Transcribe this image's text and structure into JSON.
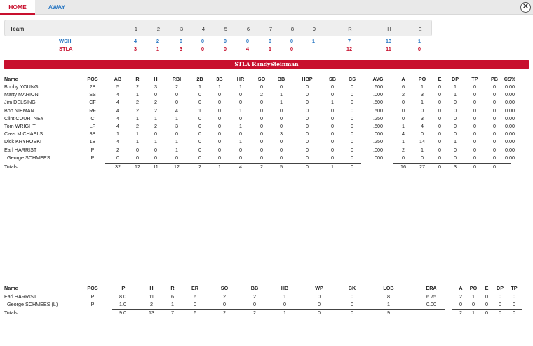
{
  "tabs": {
    "home": "HOME",
    "away": "AWAY"
  },
  "close_label": "✕",
  "linescore": {
    "header": "Team",
    "innings": [
      "1",
      "2",
      "3",
      "4",
      "5",
      "6",
      "7",
      "8",
      "9"
    ],
    "totals_headers": [
      "R",
      "H",
      "E"
    ],
    "teams": [
      {
        "name": "WSH",
        "innings": [
          "4",
          "2",
          "0",
          "0",
          "0",
          "0",
          "0",
          "0",
          "1"
        ],
        "totals": [
          "7",
          "13",
          "1"
        ]
      },
      {
        "name": "STLA",
        "innings": [
          "3",
          "1",
          "3",
          "0",
          "0",
          "4",
          "1",
          "0",
          ""
        ],
        "totals": [
          "12",
          "11",
          "0"
        ]
      }
    ]
  },
  "banner": "STLA RandySteinman",
  "batting": {
    "headers": [
      "Name",
      "POS",
      "AB",
      "R",
      "H",
      "RBI",
      "2B",
      "3B",
      "HR",
      "SO",
      "BB",
      "HBP",
      "SB",
      "CS",
      "AVG",
      "A",
      "PO",
      "E",
      "DP",
      "TP",
      "PB",
      "CS%"
    ],
    "rows": [
      [
        "Bobby YOUNG",
        "2B",
        "5",
        "2",
        "3",
        "2",
        "1",
        "1",
        "1",
        "0",
        "0",
        "0",
        "0",
        "0",
        ".600",
        "6",
        "1",
        "0",
        "1",
        "0",
        "0",
        "0.00"
      ],
      [
        "Marty MARION",
        "SS",
        "4",
        "1",
        "0",
        "0",
        "0",
        "0",
        "0",
        "2",
        "1",
        "0",
        "0",
        "0",
        ".000",
        "2",
        "3",
        "0",
        "1",
        "0",
        "0",
        "0.00"
      ],
      [
        "Jim DELSING",
        "CF",
        "4",
        "2",
        "2",
        "0",
        "0",
        "0",
        "0",
        "0",
        "1",
        "0",
        "1",
        "0",
        ".500",
        "0",
        "1",
        "0",
        "0",
        "0",
        "0",
        "0.00"
      ],
      [
        "Bob NIEMAN",
        "RF",
        "4",
        "2",
        "2",
        "4",
        "1",
        "0",
        "1",
        "0",
        "0",
        "0",
        "0",
        "0",
        ".500",
        "0",
        "0",
        "0",
        "0",
        "0",
        "0",
        "0.00"
      ],
      [
        "Clint COURTNEY",
        "C",
        "4",
        "1",
        "1",
        "1",
        "0",
        "0",
        "0",
        "0",
        "0",
        "0",
        "0",
        "0",
        ".250",
        "0",
        "3",
        "0",
        "0",
        "0",
        "0",
        "0.00"
      ],
      [
        "Tom WRIGHT",
        "LF",
        "4",
        "2",
        "2",
        "3",
        "0",
        "0",
        "1",
        "0",
        "0",
        "0",
        "0",
        "0",
        ".500",
        "1",
        "4",
        "0",
        "0",
        "0",
        "0",
        "0.00"
      ],
      [
        "Cass MICHAELS",
        "3B",
        "1",
        "1",
        "0",
        "0",
        "0",
        "0",
        "0",
        "0",
        "3",
        "0",
        "0",
        "0",
        ".000",
        "4",
        "0",
        "0",
        "0",
        "0",
        "0",
        "0.00"
      ],
      [
        "Dick KRYHOSKI",
        "1B",
        "4",
        "1",
        "1",
        "1",
        "0",
        "0",
        "1",
        "0",
        "0",
        "0",
        "0",
        "0",
        ".250",
        "1",
        "14",
        "0",
        "1",
        "0",
        "0",
        "0.00"
      ],
      [
        "Earl HARRIST",
        "P",
        "2",
        "0",
        "0",
        "1",
        "0",
        "0",
        "0",
        "0",
        "0",
        "0",
        "0",
        "0",
        ".000",
        "2",
        "1",
        "0",
        "0",
        "0",
        "0",
        "0.00"
      ],
      [
        "George SCHMEES",
        "P",
        "0",
        "0",
        "0",
        "0",
        "0",
        "0",
        "0",
        "0",
        "0",
        "0",
        "0",
        "0",
        ".000",
        "0",
        "0",
        "0",
        "0",
        "0",
        "0",
        "0.00"
      ]
    ],
    "totals": [
      "Totals",
      "",
      "32",
      "12",
      "11",
      "12",
      "2",
      "1",
      "4",
      "2",
      "5",
      "0",
      "1",
      "0",
      "",
      "16",
      "27",
      "0",
      "3",
      "0",
      "0",
      ""
    ]
  },
  "pitching": {
    "headers": [
      "Name",
      "POS",
      "IP",
      "H",
      "R",
      "ER",
      "SO",
      "BB",
      "HB",
      "WP",
      "BK",
      "LOB",
      "ERA",
      "A",
      "PO",
      "E",
      "DP",
      "TP"
    ],
    "rows": [
      [
        "Earl HARRIST",
        "P",
        "8.0",
        "11",
        "6",
        "6",
        "2",
        "2",
        "1",
        "0",
        "0",
        "8",
        "6.75",
        "2",
        "1",
        "0",
        "0",
        "0"
      ],
      [
        "George SCHMEES (L)",
        "P",
        "1.0",
        "2",
        "1",
        "0",
        "0",
        "0",
        "0",
        "0",
        "0",
        "1",
        "0.00",
        "0",
        "0",
        "0",
        "0",
        "0"
      ]
    ],
    "totals": [
      "Totals",
      "",
      "9.0",
      "13",
      "7",
      "6",
      "2",
      "2",
      "1",
      "0",
      "0",
      "9",
      "",
      "2",
      "1",
      "0",
      "0",
      "0"
    ]
  }
}
